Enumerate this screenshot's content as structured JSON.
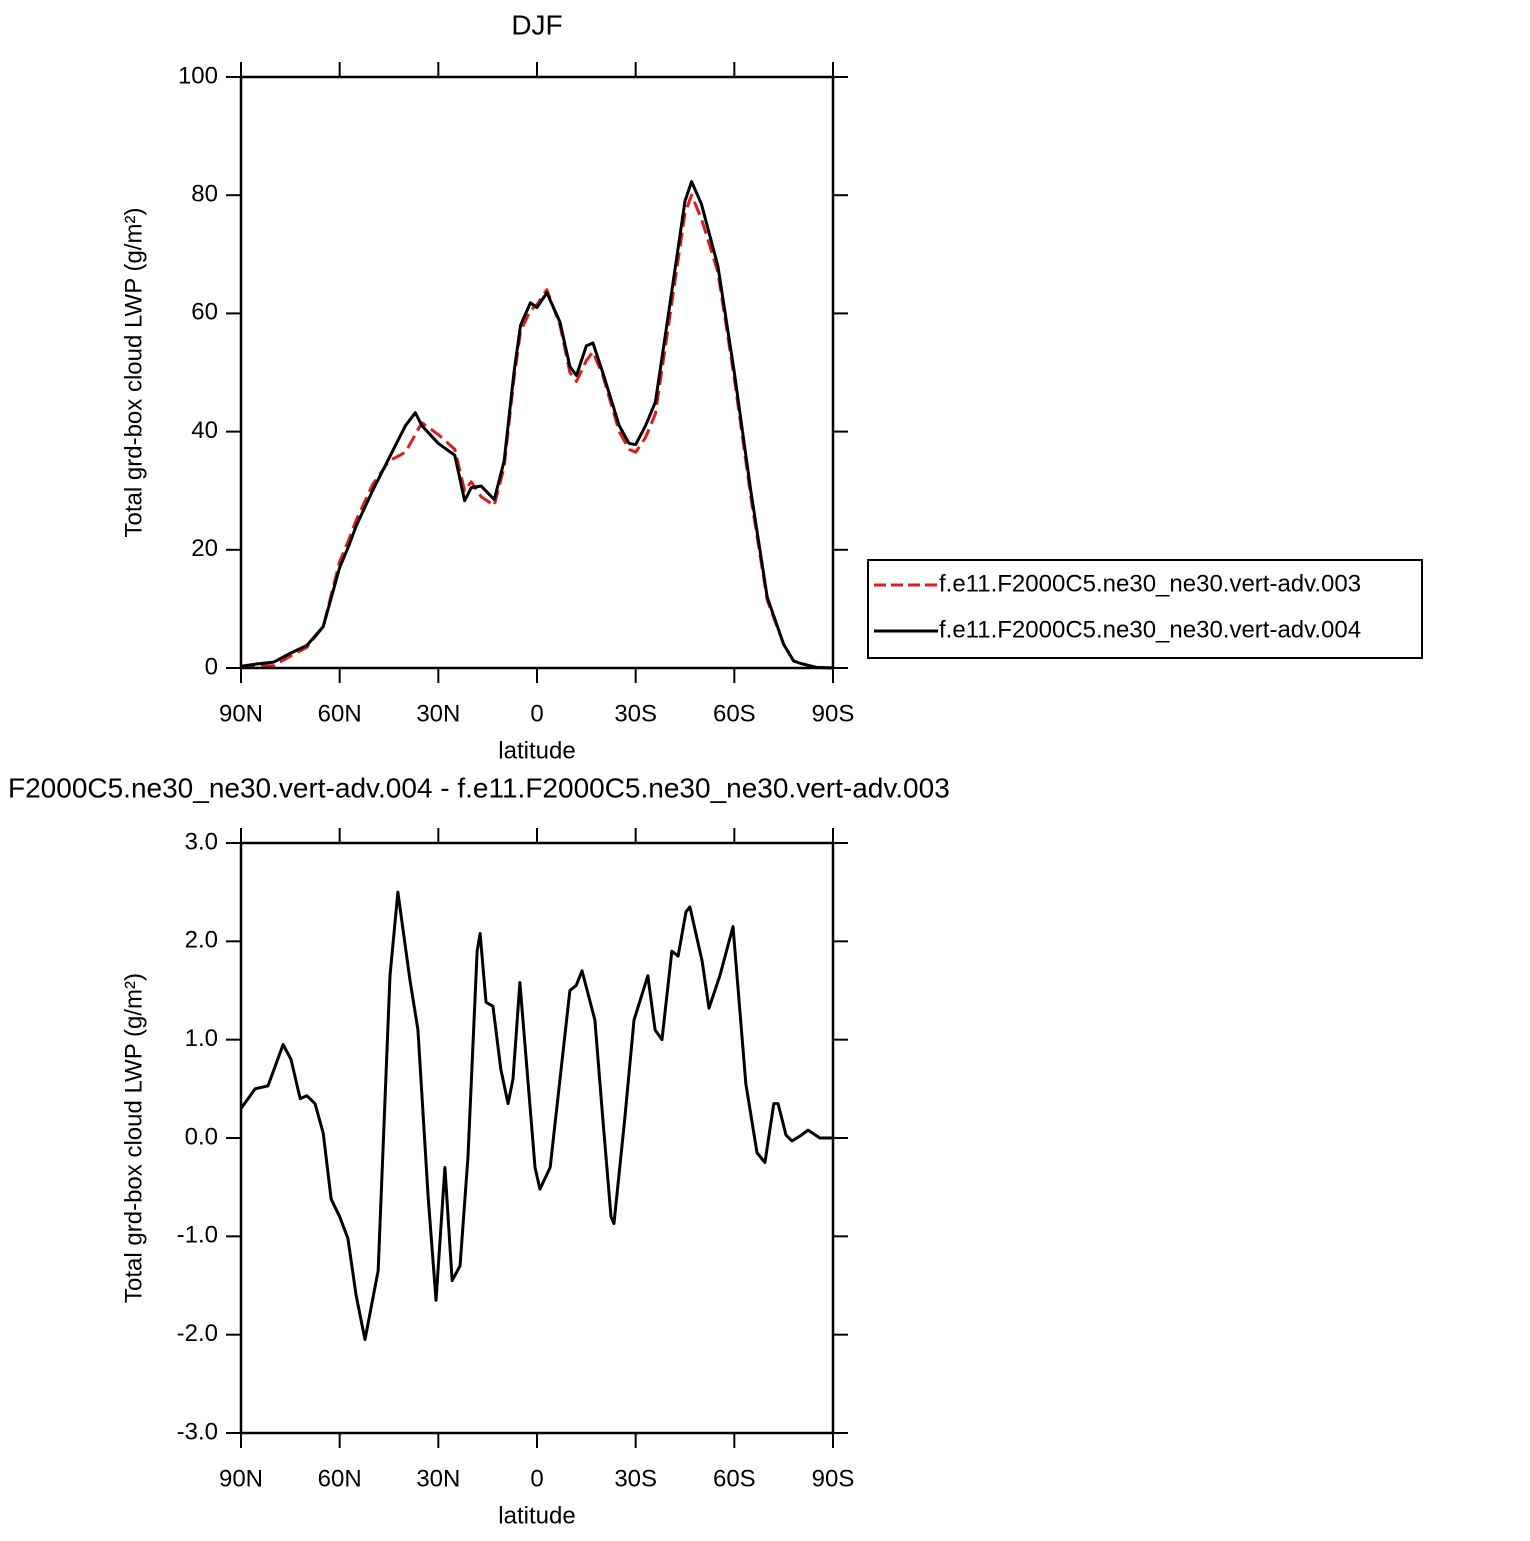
{
  "chart_data": [
    {
      "type": "line",
      "title": "DJF",
      "xlabel": "latitude",
      "ylabel": "Total grd-box cloud LWP (g/m²)",
      "x": [
        90,
        85,
        80,
        75,
        70,
        65,
        60,
        57,
        55,
        50,
        45,
        40,
        37,
        35,
        30,
        25,
        22,
        20,
        17,
        13,
        10,
        7,
        5,
        2,
        0,
        -3,
        -7,
        -10,
        -12,
        -15,
        -17,
        -20,
        -25,
        -28,
        -30,
        -33,
        -36,
        -40,
        -45,
        -47,
        -50,
        -55,
        -60,
        -65,
        -70,
        -75,
        -78,
        -80,
        -85,
        -90
      ],
      "series": [
        {
          "name": "f.e11.F2000C5.ne30_ne30.vert-adv.003",
          "color": "#e31a1c",
          "linestyle": "dashed",
          "values": [
            0.1,
            0.3,
            0.4,
            2,
            3.5,
            7,
            18,
            22,
            25,
            31,
            35,
            36.5,
            39.5,
            41.5,
            39.5,
            37,
            30,
            31.5,
            29,
            27.5,
            34,
            49,
            57,
            60.5,
            61.5,
            64,
            58,
            50,
            48.5,
            52,
            53.5,
            49.5,
            40,
            37,
            36.5,
            39,
            43,
            58,
            77,
            80,
            76,
            67,
            49,
            29,
            11.5,
            4,
            1.2,
            0.8,
            0.1,
            0
          ]
        },
        {
          "name": "f.e11.F2000C5.ne30_ne30.vert-adv.004",
          "color": "#000000",
          "linestyle": "solid",
          "values": [
            0.3,
            0.7,
            1.0,
            2.5,
            3.8,
            7,
            17,
            21,
            24,
            30,
            35.5,
            41,
            43.2,
            41,
            38,
            36,
            28.3,
            30.5,
            30.8,
            28.5,
            35,
            50,
            58,
            61.8,
            61,
            63.5,
            58.5,
            51,
            49.5,
            54.5,
            55,
            50,
            41,
            38,
            37.8,
            41,
            45,
            60,
            79,
            82.3,
            78.5,
            68,
            50,
            30,
            12,
            4,
            1.2,
            0.8,
            0.1,
            0
          ]
        }
      ],
      "xlim": [
        90,
        -90
      ],
      "xticks": [
        {
          "value": 90,
          "label": "90N"
        },
        {
          "value": 60,
          "label": "60N"
        },
        {
          "value": 30,
          "label": "30N"
        },
        0,
        {
          "value": -30,
          "label": "30S"
        },
        {
          "value": -60,
          "label": "60S"
        },
        {
          "value": -90,
          "label": "90S"
        }
      ],
      "ylim": [
        0,
        100
      ],
      "yticks": [
        0,
        20,
        40,
        60,
        80,
        100
      ],
      "grid": false,
      "legend": "right"
    },
    {
      "type": "line",
      "title": "F2000C5.ne30_ne30.vert-adv.004 - f.e11.F2000C5.ne30_ne30.vert-adv.003",
      "xlabel": "latitude",
      "ylabel": "Total grd-box cloud LWP (g/m²)",
      "x": [
        90,
        85.7,
        81.8,
        77.2,
        74.8,
        72,
        70,
        67.5,
        65,
        62.6,
        60,
        57.5,
        55,
        52.3,
        48.3,
        44.7,
        42.3,
        38.6,
        36.2,
        33.1,
        30.7,
        28,
        25.8,
        23.4,
        21,
        18.2,
        17.3,
        15.5,
        13.4,
        11,
        8.8,
        7.3,
        5.2,
        0.6,
        -0.9,
        -4,
        -7,
        -10,
        -11.9,
        -13.7,
        -17.6,
        -20,
        -22.5,
        -23.4,
        -26.7,
        -29.5,
        -33.7,
        -35.9,
        -38,
        -41,
        -42.9,
        -45.3,
        -46.5,
        -50.2,
        -52.3,
        -55.6,
        -59.6,
        -63.5,
        -66.9,
        -69.3,
        -72,
        -73.3,
        -75.7,
        -77.5,
        -80,
        -82.4,
        -86,
        -90
      ],
      "series": [
        {
          "color": "#000000",
          "linestyle": "solid",
          "values": [
            0.3,
            0.5,
            0.53,
            0.95,
            0.8,
            0.4,
            0.43,
            0.35,
            0.05,
            -0.62,
            -0.8,
            -1.02,
            -1.6,
            -2.05,
            -1.35,
            1.65,
            2.5,
            1.6,
            1.1,
            -0.6,
            -1.65,
            -0.3,
            -1.45,
            -1.3,
            -0.2,
            1.9,
            2.08,
            1.38,
            1.34,
            0.7,
            0.35,
            0.6,
            1.58,
            -0.3,
            -0.52,
            -0.3,
            0.6,
            1.5,
            1.55,
            1.7,
            1.2,
            0.2,
            -0.8,
            -0.87,
            0.2,
            1.2,
            1.65,
            1.1,
            1.0,
            1.9,
            1.85,
            2.3,
            2.35,
            1.8,
            1.32,
            1.65,
            2.15,
            0.55,
            -0.15,
            -0.25,
            0.35,
            0.35,
            0.03,
            -0.03,
            0.02,
            0.08,
            0.0,
            0.0
          ]
        }
      ],
      "xlim": [
        90,
        -90
      ],
      "xticks": [
        {
          "value": 90,
          "label": "90N"
        },
        {
          "value": 60,
          "label": "60N"
        },
        {
          "value": 30,
          "label": "30N"
        },
        0,
        {
          "value": -30,
          "label": "30S"
        },
        {
          "value": -60,
          "label": "60S"
        },
        {
          "value": -90,
          "label": "90S"
        }
      ],
      "ylim": [
        -3,
        3
      ],
      "yticks": [
        {
          "value": -3,
          "label": "-3.0"
        },
        {
          "value": -2,
          "label": "-2.0"
        },
        {
          "value": -1,
          "label": "-1.0"
        },
        {
          "value": 0,
          "label": "0.0"
        },
        {
          "value": 1,
          "label": "1.0"
        },
        {
          "value": 2,
          "label": "2.0"
        },
        {
          "value": 3,
          "label": "3.0"
        }
      ],
      "grid": false
    }
  ]
}
